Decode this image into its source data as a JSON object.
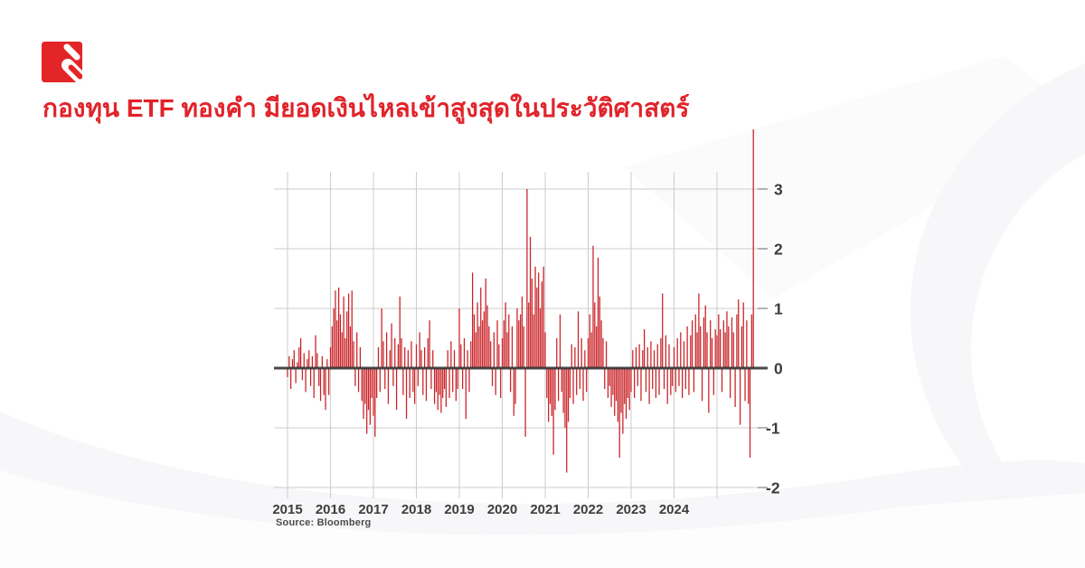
{
  "page": {
    "background": "#ffffff",
    "accent_red": "#e1232a"
  },
  "header": {
    "logo": {
      "label": "brand-logo",
      "color": "#e42528",
      "slash_color": "#ffffff"
    },
    "title": "กองทุน ETF ทองคำ มียอดเงินไหลเข้าสูงสุดในประวัติศาสตร์",
    "title_color": "#e1232a"
  },
  "chart_data": {
    "type": "bar",
    "title": "กองทุน ETF ทองคำ มียอดเงินไหลเข้าสูงสุดในประวัติศาสตร์",
    "x_start_year": 2015,
    "bars_per_year": 26,
    "x_tick_labels": [
      "2015",
      "2016",
      "2017",
      "2018",
      "2019",
      "2020",
      "2021",
      "2022",
      "2023",
      "2024"
    ],
    "gridline_years": [
      2015,
      2016,
      2017,
      2018,
      2019,
      2020,
      2021,
      2022,
      2023,
      2024,
      2025
    ],
    "y_ticks": [
      3,
      2,
      1,
      0,
      -1,
      -2
    ],
    "ylim": [
      -2.2,
      3.3
    ],
    "grid": "on",
    "legend": "none",
    "bar_color": "#c91f24",
    "grid_color": "#cccccc",
    "tick_color": "#9a9a9a",
    "zero_line_color": "#333333",
    "axis_label_color": "#3d3d3d",
    "source": "Source: Bloomberg",
    "values": [
      -0.15,
      0.2,
      -0.35,
      0.15,
      0.3,
      -0.25,
      0.1,
      0.35,
      0.5,
      -0.2,
      0.25,
      -0.4,
      0.15,
      0.3,
      -0.3,
      0.2,
      -0.5,
      0.55,
      0.25,
      -0.3,
      -0.55,
      0.2,
      -0.45,
      -0.7,
      0.15,
      -0.45,
      0.35,
      0.7,
      1.0,
      1.3,
      0.8,
      1.35,
      0.9,
      0.6,
      1.2,
      0.5,
      0.95,
      1.25,
      0.7,
      1.3,
      0.45,
      -0.3,
      0.6,
      -0.4,
      0.35,
      -0.55,
      -0.85,
      -0.6,
      -1.1,
      -0.7,
      -0.95,
      -0.5,
      -0.8,
      -1.15,
      -0.5,
      0.35,
      -0.4,
      1.0,
      0.45,
      -0.35,
      0.6,
      -0.6,
      0.3,
      0.75,
      -0.3,
      0.5,
      -0.7,
      0.4,
      1.2,
      0.5,
      -0.45,
      0.35,
      -0.85,
      0.3,
      -0.5,
      0.45,
      -0.4,
      -0.6,
      0.4,
      -0.3,
      0.6,
      0.3,
      -0.45,
      0.35,
      -0.55,
      0.5,
      0.8,
      -0.35,
      0.3,
      -0.6,
      -0.4,
      -0.7,
      -0.45,
      -0.75,
      -0.5,
      -0.35,
      -0.65,
      0.3,
      -0.5,
      0.45,
      -0.4,
      0.3,
      -0.55,
      -0.35,
      1.0,
      0.4,
      -0.35,
      0.5,
      -0.85,
      0.3,
      -0.4,
      0.45,
      1.6,
      0.9,
      0.6,
      1.1,
      0.7,
      1.35,
      0.8,
      0.95,
      1.5,
      1.05,
      0.7,
      0.45,
      -0.3,
      0.6,
      -0.45,
      0.8,
      0.4,
      -0.5,
      0.5,
      0.8,
      1.1,
      0.6,
      0.9,
      -0.4,
      0.7,
      -0.8,
      -0.6,
      1.0,
      0.8,
      0.9,
      1.2,
      0.7,
      -1.15,
      3.0,
      1.1,
      2.2,
      1.5,
      0.9,
      1.7,
      1.35,
      1.6,
      1.0,
      1.45,
      1.7,
      0.6,
      -0.5,
      -0.9,
      -0.6,
      -0.8,
      -1.45,
      -0.7,
      0.5,
      -0.55,
      0.9,
      -0.4,
      -0.75,
      -1.0,
      -1.75,
      -0.9,
      -0.5,
      0.4,
      -0.6,
      0.35,
      -0.45,
      0.95,
      -0.35,
      0.5,
      -0.55,
      0.3,
      -0.4,
      0.5,
      0.9,
      0.6,
      2.05,
      1.1,
      0.7,
      1.85,
      1.2,
      0.8,
      0.5,
      -0.35,
      0.45,
      -0.5,
      -0.3,
      -0.65,
      -0.45,
      -0.8,
      -0.55,
      -0.9,
      -1.5,
      -0.75,
      -1.1,
      -0.6,
      -0.85,
      -0.5,
      -0.7,
      -0.4,
      0.3,
      -0.5,
      0.35,
      -0.3,
      0.4,
      -0.55,
      0.3,
      0.65,
      -0.4,
      0.35,
      -0.6,
      0.45,
      -0.35,
      0.3,
      -0.5,
      0.4,
      -0.45,
      0.5,
      1.25,
      -0.35,
      0.55,
      -0.6,
      0.4,
      -0.45,
      -0.3,
      0.35,
      -0.4,
      0.5,
      -0.3,
      0.6,
      -0.5,
      0.45,
      -0.35,
      0.7,
      -0.45,
      0.55,
      0.8,
      -0.4,
      0.9,
      0.6,
      1.25,
      0.7,
      -0.55,
      0.85,
      1.05,
      0.6,
      -0.75,
      0.8,
      0.5,
      -0.45,
      0.65,
      0.55,
      0.9,
      0.65,
      -0.4,
      0.8,
      0.6,
      0.95,
      0.7,
      -0.5,
      0.85,
      0.6,
      -0.65,
      0.9,
      1.15,
      -0.95,
      0.7,
      1.1,
      -0.55,
      0.8,
      -0.6,
      -1.5,
      0.9,
      4.0
    ]
  }
}
